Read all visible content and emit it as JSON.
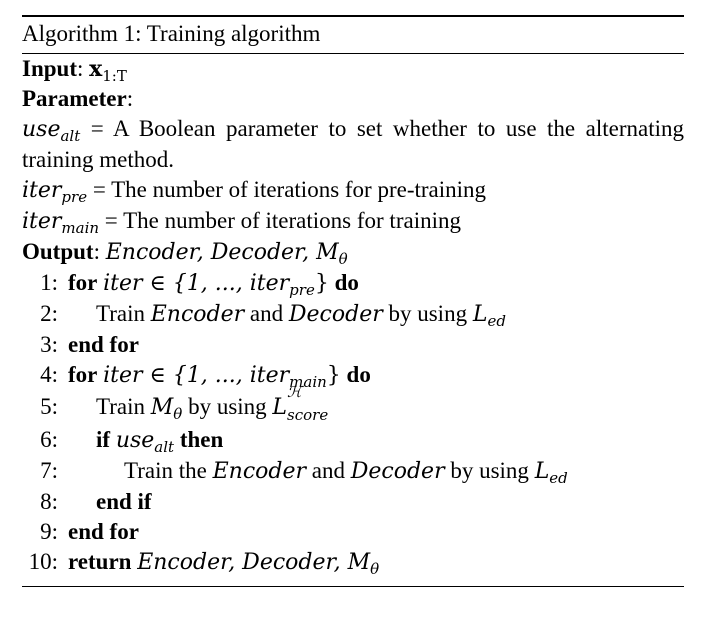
{
  "caption": "Algorithm 1: Training algorithm",
  "header": {
    "input_label": "Input",
    "input_var": "x",
    "input_sub": "1:T",
    "parameter_label": "Parameter",
    "use_alt_var": "use",
    "use_alt_sub": "alt",
    "use_alt_desc": "= A Boolean parameter to set whether to use the alternating training method.",
    "iter_pre_var": "iter",
    "iter_pre_sub": "pre",
    "iter_pre_desc": "= The number of iterations for pre-training",
    "iter_main_var": "iter",
    "iter_main_sub": "main",
    "iter_main_desc": "= The number of iterations for training",
    "output_label": "Output",
    "output_value": "Encoder, Decoder, M",
    "output_sub": "θ"
  },
  "steps": [
    {
      "num": "1:",
      "kw1": "for",
      "text": "iter ∈ {1, ..., iter",
      "sub": "pre",
      "close": "}",
      "kw2": "do"
    },
    {
      "num": "2:",
      "pre": "Train",
      "t1": "Encoder",
      "mid": "and",
      "t2": "Decoder",
      "post": "by using",
      "loss": "L",
      "loss_sub": "ed"
    },
    {
      "num": "3:",
      "kw1": "end for"
    },
    {
      "num": "4:",
      "kw1": "for",
      "text": "iter ∈ {1, ..., iter",
      "sub": "main",
      "close": "}",
      "kw2": "do"
    },
    {
      "num": "5:",
      "pre": "Train",
      "t1": "M",
      "t1_sub": "θ",
      "post": "by using",
      "loss": "L",
      "loss_sup": "ℋ",
      "loss_sub": "score"
    },
    {
      "num": "6:",
      "kw1": "if",
      "var": "use",
      "var_sub": "alt",
      "kw2": "then"
    },
    {
      "num": "7:",
      "pre": "Train the",
      "t1": "Encoder",
      "mid": "and",
      "t2": "Decoder",
      "post": "by using",
      "loss": "L",
      "loss_sub": "ed"
    },
    {
      "num": "8:",
      "kw1": "end if"
    },
    {
      "num": "9:",
      "kw1": "end for"
    },
    {
      "num": "10:",
      "kw1": "return",
      "text": "Encoder, Decoder, M",
      "sub": "θ"
    }
  ]
}
